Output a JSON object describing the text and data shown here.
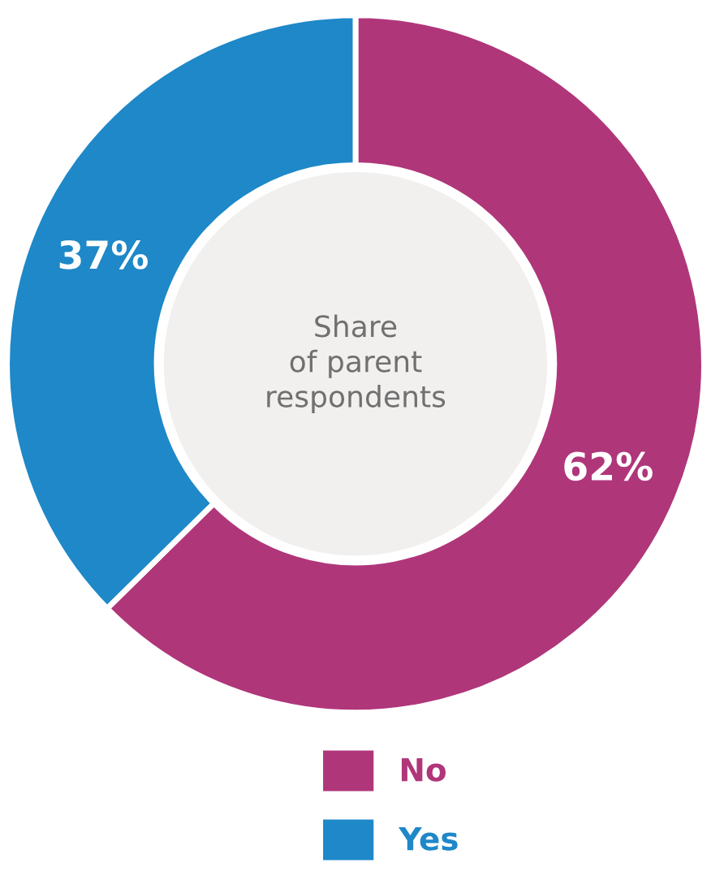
{
  "chart_data": {
    "type": "donut",
    "categories": [
      "No",
      "Yes"
    ],
    "values": [
      62,
      37
    ],
    "colors": [
      "#b0367a",
      "#1e88c8"
    ],
    "value_labels": [
      "62%",
      "37%"
    ],
    "annotations": [
      "Share\nof parent\nrespondents"
    ],
    "legend": "bottom"
  }
}
